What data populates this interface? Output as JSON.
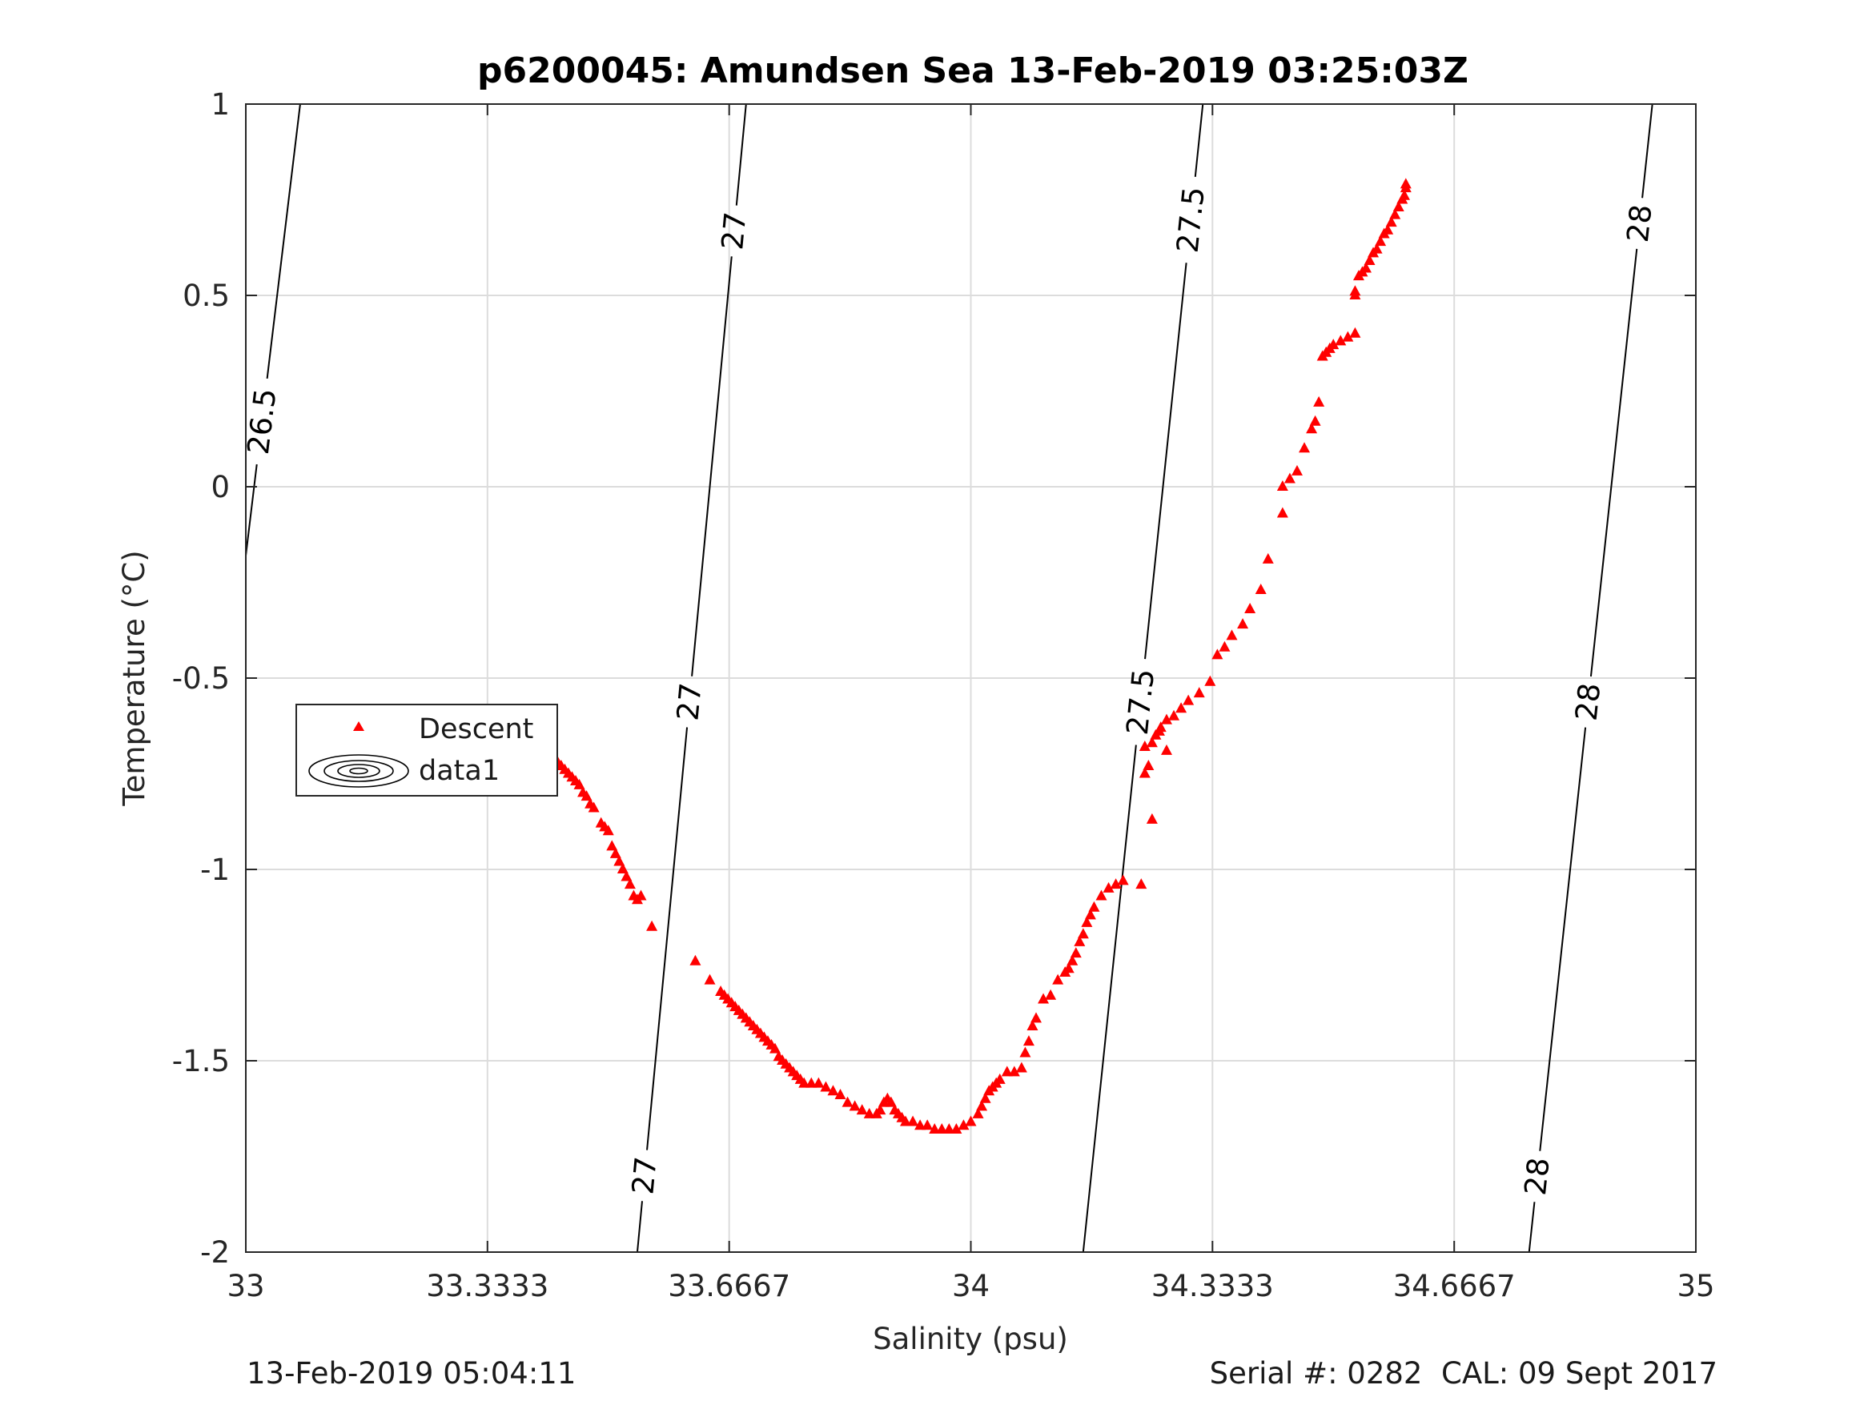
{
  "chart_data": {
    "type": "scatter",
    "title": "p6200045: Amundsen Sea 13-Feb-2019 03:25:03Z",
    "xlabel": "Salinity (psu)",
    "ylabel": "Temperature (°C)",
    "xlim": [
      33,
      35
    ],
    "ylim": [
      -2,
      1
    ],
    "xticks": [
      33,
      33.3333,
      33.6667,
      34,
      34.3333,
      34.6667,
      35
    ],
    "xtick_labels": [
      "33",
      "33.3333",
      "33.6667",
      "34",
      "34.3333",
      "34.6667",
      "35"
    ],
    "yticks": [
      -2,
      -1.5,
      -1,
      -0.5,
      0,
      0.5,
      1
    ],
    "ytick_labels": [
      "-2",
      "-1.5",
      "-1",
      "-0.5",
      "0",
      "0.5",
      "1"
    ],
    "grid": true,
    "legend": {
      "position": "left",
      "entries": [
        {
          "label": "Descent",
          "marker": "triangle",
          "color": "#ff0000"
        },
        {
          "label": "data1",
          "marker": "contour",
          "color": "#000000"
        }
      ]
    },
    "series": [
      {
        "name": "Descent",
        "marker": "triangle",
        "color": "#ff0000",
        "points": [
          [
            34.6,
            0.79
          ],
          [
            34.6,
            0.78
          ],
          [
            34.598,
            0.76
          ],
          [
            34.595,
            0.75
          ],
          [
            34.59,
            0.73
          ],
          [
            34.585,
            0.71
          ],
          [
            34.58,
            0.69
          ],
          [
            34.575,
            0.67
          ],
          [
            34.57,
            0.66
          ],
          [
            34.565,
            0.64
          ],
          [
            34.56,
            0.62
          ],
          [
            34.555,
            0.61
          ],
          [
            34.55,
            0.59
          ],
          [
            34.545,
            0.57
          ],
          [
            34.54,
            0.56
          ],
          [
            34.535,
            0.55
          ],
          [
            34.53,
            0.51
          ],
          [
            34.53,
            0.5
          ],
          [
            34.53,
            0.4
          ],
          [
            34.52,
            0.39
          ],
          [
            34.51,
            0.38
          ],
          [
            34.5,
            0.37
          ],
          [
            34.495,
            0.36
          ],
          [
            34.49,
            0.35
          ],
          [
            34.485,
            0.34
          ],
          [
            34.48,
            0.22
          ],
          [
            34.475,
            0.17
          ],
          [
            34.47,
            0.15
          ],
          [
            34.46,
            0.1
          ],
          [
            34.45,
            0.04
          ],
          [
            34.44,
            0.02
          ],
          [
            34.43,
            0.0
          ],
          [
            34.43,
            -0.07
          ],
          [
            34.41,
            -0.19
          ],
          [
            34.4,
            -0.27
          ],
          [
            34.385,
            -0.32
          ],
          [
            34.375,
            -0.36
          ],
          [
            34.36,
            -0.39
          ],
          [
            34.35,
            -0.42
          ],
          [
            34.34,
            -0.44
          ],
          [
            34.33,
            -0.51
          ],
          [
            34.315,
            -0.54
          ],
          [
            34.3,
            -0.56
          ],
          [
            34.29,
            -0.58
          ],
          [
            34.28,
            -0.6
          ],
          [
            34.27,
            -0.61
          ],
          [
            34.262,
            -0.63
          ],
          [
            34.26,
            -0.64
          ],
          [
            34.27,
            -0.69
          ],
          [
            34.255,
            -0.65
          ],
          [
            34.25,
            -0.67
          ],
          [
            34.24,
            -0.68
          ],
          [
            34.245,
            -0.73
          ],
          [
            34.24,
            -0.75
          ],
          [
            34.25,
            -0.87
          ],
          [
            34.235,
            -1.04
          ],
          [
            34.21,
            -1.03
          ],
          [
            34.2,
            -1.04
          ],
          [
            34.19,
            -1.05
          ],
          [
            34.18,
            -1.07
          ],
          [
            34.17,
            -1.1
          ],
          [
            34.165,
            -1.12
          ],
          [
            34.16,
            -1.14
          ],
          [
            34.155,
            -1.17
          ],
          [
            34.15,
            -1.19
          ],
          [
            34.145,
            -1.22
          ],
          [
            34.14,
            -1.24
          ],
          [
            34.135,
            -1.26
          ],
          [
            34.13,
            -1.27
          ],
          [
            34.12,
            -1.29
          ],
          [
            34.11,
            -1.33
          ],
          [
            34.1,
            -1.34
          ],
          [
            34.09,
            -1.39
          ],
          [
            34.085,
            -1.41
          ],
          [
            34.08,
            -1.45
          ],
          [
            34.075,
            -1.48
          ],
          [
            34.07,
            -1.52
          ],
          [
            34.06,
            -1.53
          ],
          [
            34.05,
            -1.53
          ],
          [
            34.04,
            -1.55
          ],
          [
            34.035,
            -1.56
          ],
          [
            34.03,
            -1.57
          ],
          [
            34.025,
            -1.58
          ],
          [
            34.02,
            -1.6
          ],
          [
            34.015,
            -1.62
          ],
          [
            34.01,
            -1.64
          ],
          [
            34.0,
            -1.66
          ],
          [
            33.99,
            -1.67
          ],
          [
            33.98,
            -1.68
          ],
          [
            33.97,
            -1.68
          ],
          [
            33.96,
            -1.68
          ],
          [
            33.95,
            -1.68
          ],
          [
            33.94,
            -1.67
          ],
          [
            33.93,
            -1.67
          ],
          [
            33.92,
            -1.66
          ],
          [
            33.91,
            -1.66
          ],
          [
            33.905,
            -1.65
          ],
          [
            33.9,
            -1.64
          ],
          [
            33.895,
            -1.63
          ],
          [
            33.89,
            -1.61
          ],
          [
            33.885,
            -1.6
          ],
          [
            33.88,
            -1.61
          ],
          [
            33.875,
            -1.63
          ],
          [
            33.87,
            -1.64
          ],
          [
            33.86,
            -1.64
          ],
          [
            33.85,
            -1.63
          ],
          [
            33.84,
            -1.62
          ],
          [
            33.83,
            -1.61
          ],
          [
            33.82,
            -1.59
          ],
          [
            33.81,
            -1.58
          ],
          [
            33.8,
            -1.57
          ],
          [
            33.79,
            -1.56
          ],
          [
            33.78,
            -1.56
          ],
          [
            33.77,
            -1.56
          ],
          [
            33.765,
            -1.55
          ],
          [
            33.76,
            -1.54
          ],
          [
            33.755,
            -1.53
          ],
          [
            33.75,
            -1.52
          ],
          [
            33.745,
            -1.51
          ],
          [
            33.74,
            -1.5
          ],
          [
            33.735,
            -1.49
          ],
          [
            33.73,
            -1.47
          ],
          [
            33.725,
            -1.46
          ],
          [
            33.72,
            -1.45
          ],
          [
            33.715,
            -1.44
          ],
          [
            33.71,
            -1.43
          ],
          [
            33.705,
            -1.42
          ],
          [
            33.7,
            -1.41
          ],
          [
            33.695,
            -1.4
          ],
          [
            33.69,
            -1.39
          ],
          [
            33.685,
            -1.38
          ],
          [
            33.68,
            -1.37
          ],
          [
            33.675,
            -1.36
          ],
          [
            33.67,
            -1.35
          ],
          [
            33.665,
            -1.34
          ],
          [
            33.66,
            -1.33
          ],
          [
            33.655,
            -1.32
          ],
          [
            33.64,
            -1.29
          ],
          [
            33.62,
            -1.24
          ],
          [
            33.56,
            -1.15
          ],
          [
            33.545,
            -1.07
          ],
          [
            33.54,
            -1.08
          ],
          [
            33.535,
            -1.07
          ],
          [
            33.53,
            -1.04
          ],
          [
            33.525,
            -1.02
          ],
          [
            33.52,
            -1.0
          ],
          [
            33.515,
            -0.98
          ],
          [
            33.51,
            -0.96
          ],
          [
            33.505,
            -0.94
          ],
          [
            33.5,
            -0.9
          ],
          [
            33.495,
            -0.89
          ],
          [
            33.49,
            -0.88
          ],
          [
            33.48,
            -0.84
          ],
          [
            33.475,
            -0.83
          ],
          [
            33.47,
            -0.81
          ],
          [
            33.465,
            -0.8
          ],
          [
            33.46,
            -0.78
          ],
          [
            33.455,
            -0.77
          ],
          [
            33.45,
            -0.76
          ],
          [
            33.445,
            -0.75
          ],
          [
            33.44,
            -0.74
          ],
          [
            33.435,
            -0.73
          ],
          [
            33.43,
            -0.72
          ],
          [
            33.425,
            -0.71
          ],
          [
            33.42,
            -0.7
          ]
        ]
      }
    ],
    "contours": [
      {
        "label": "26.5",
        "points": [
          [
            33.0,
            -0.18
          ],
          [
            33.075,
            1.0
          ]
        ],
        "label_positions": [
          [
            33.025,
            0.17
          ]
        ]
      },
      {
        "label": "27",
        "points": [
          [
            33.54,
            -2.0
          ],
          [
            33.69,
            1.0
          ]
        ],
        "label_positions": [
          [
            33.665,
            0.67
          ],
          [
            33.601,
            -0.56
          ],
          [
            33.55,
            -1.8
          ]
        ]
      },
      {
        "label": "27.5",
        "points": [
          [
            34.155,
            -2.0
          ],
          [
            34.32,
            1.0
          ]
        ],
        "label_positions": [
          [
            34.291,
            0.7
          ],
          [
            34.222,
            -0.56
          ]
        ]
      },
      {
        "label": "28",
        "points": [
          [
            34.77,
            -2.0
          ],
          [
            34.94,
            1.0
          ]
        ],
        "label_positions": [
          [
            34.913,
            0.69
          ],
          [
            34.84,
            -0.56
          ],
          [
            34.77,
            -1.8
          ]
        ]
      }
    ]
  },
  "footer": {
    "timestamp": "13-Feb-2019 05:04:11",
    "calibration": "Serial #: 0282  CAL: 09 Sept 2017"
  },
  "colors": {
    "marker": "#ff0000",
    "contour": "#000000",
    "grid": "#dcdcdc",
    "axis": "#262626"
  }
}
